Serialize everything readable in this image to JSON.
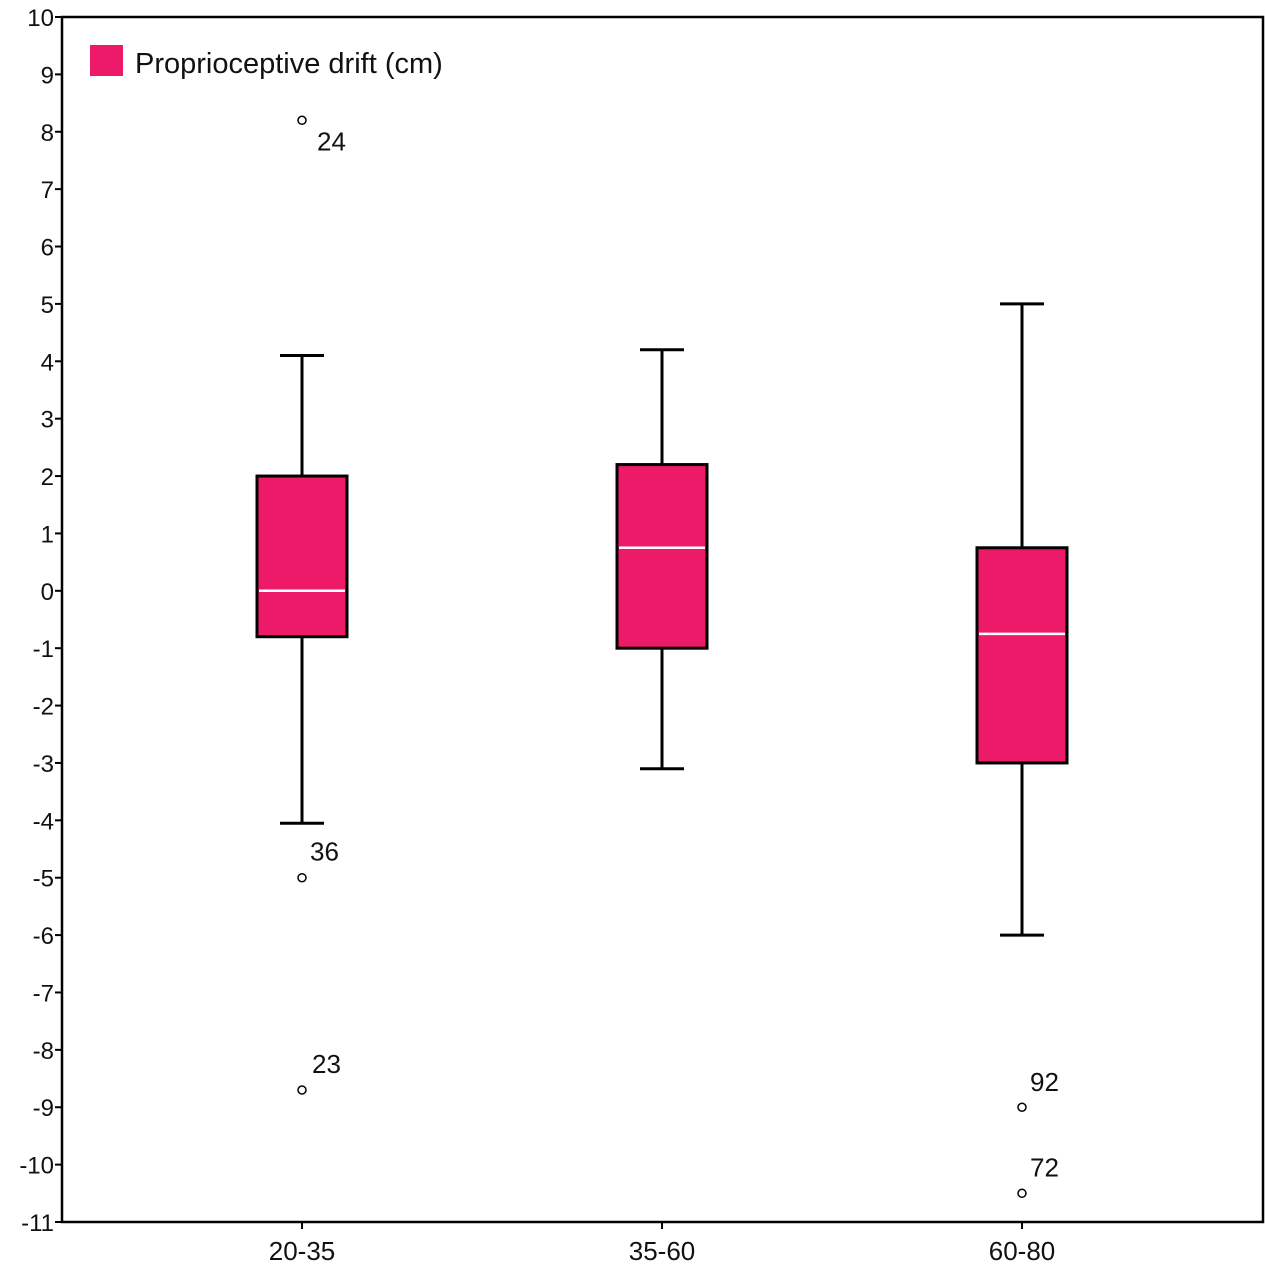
{
  "chart_data": {
    "type": "box",
    "title": "",
    "xlabel": "",
    "ylabel": "",
    "ylim": [
      -11,
      10
    ],
    "y_ticks": [
      10,
      9,
      8,
      7,
      6,
      5,
      4,
      3,
      2,
      1,
      0,
      -1,
      -2,
      -3,
      -4,
      -5,
      -6,
      -7,
      -8,
      -9,
      -10,
      -11
    ],
    "grid": false,
    "legend": {
      "position": "top-left",
      "entries": [
        "Proprioceptive drift (cm)"
      ]
    },
    "colors": {
      "box_fill": "#ed1a6a",
      "median": "#ffffff",
      "stroke": "#000000"
    },
    "categories": [
      "20-35",
      "35-60",
      "60-80"
    ],
    "series": [
      {
        "name": "Proprioceptive drift (cm)",
        "boxes": [
          {
            "category": "20-35",
            "whisker_low": -4.05,
            "q1": -0.8,
            "median": 0,
            "q3": 2,
            "whisker_high": 4.1,
            "outliers": [
              {
                "value": 8.2,
                "label": "24"
              },
              {
                "value": -5,
                "label": "36"
              },
              {
                "value": -8.7,
                "label": "23"
              }
            ]
          },
          {
            "category": "35-60",
            "whisker_low": -3.1,
            "q1": -1,
            "median": 0.75,
            "q3": 2.2,
            "whisker_high": 4.2,
            "outliers": []
          },
          {
            "category": "60-80",
            "whisker_low": -6,
            "q1": -3,
            "median": -0.75,
            "q3": 0.75,
            "whisker_high": 5,
            "outliers": [
              {
                "value": -9,
                "label": "92"
              },
              {
                "value": -10.5,
                "label": "72"
              }
            ]
          }
        ]
      }
    ]
  }
}
